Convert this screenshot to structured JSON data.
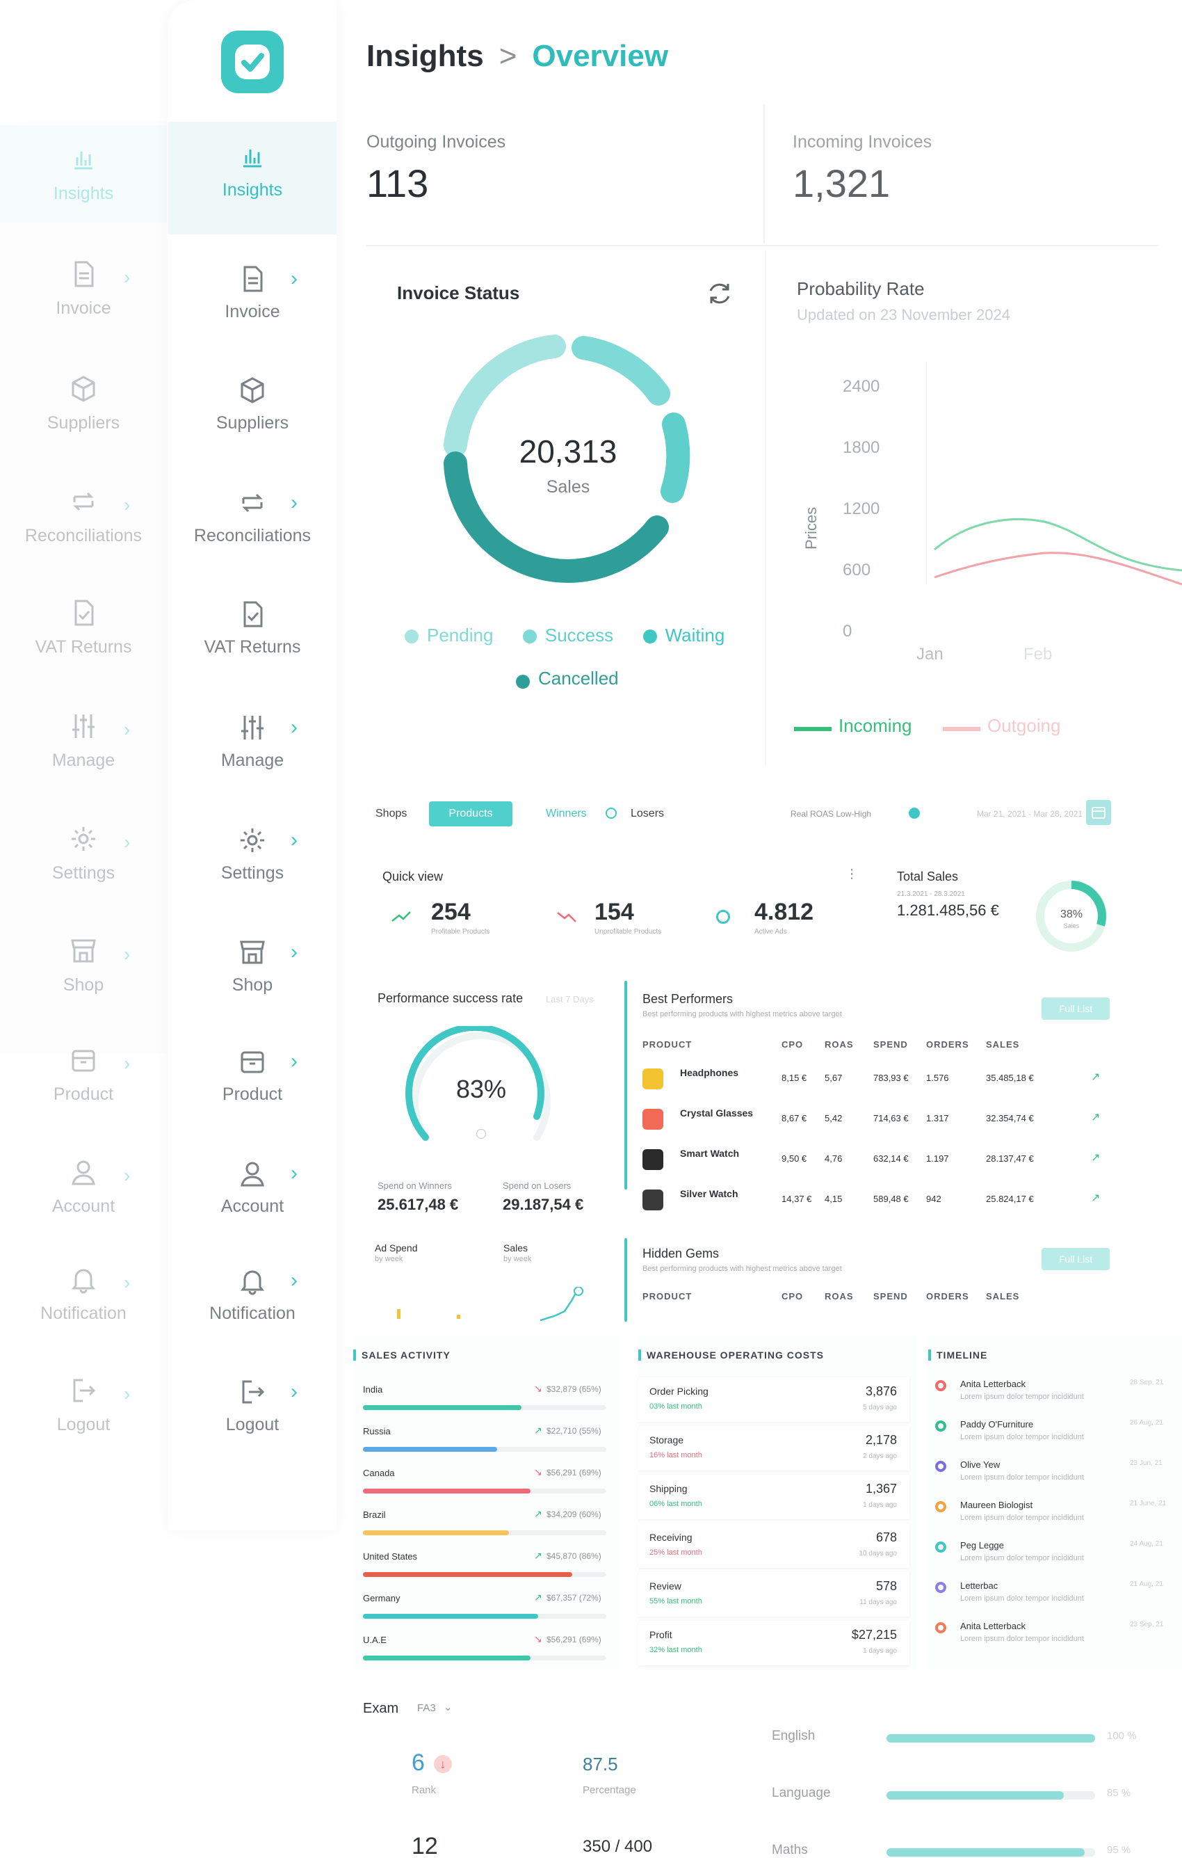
{
  "brand": {
    "accent": "#3ec7c4",
    "dark_teal": "#2f9e98",
    "logo_icon": "check-badge-icon"
  },
  "nav": {
    "items": [
      {
        "label": "Insights",
        "icon": "bar-chart-icon",
        "chevron": false,
        "active": true
      },
      {
        "label": "Invoice",
        "icon": "document-icon",
        "chevron": true
      },
      {
        "label": "Suppliers",
        "icon": "box-icon",
        "chevron": false
      },
      {
        "label": "Reconciliations",
        "icon": "swap-icon",
        "chevron": true
      },
      {
        "label": "VAT Returns",
        "icon": "file-check-icon",
        "chevron": false
      },
      {
        "label": "Manage",
        "icon": "sliders-icon",
        "chevron": true
      },
      {
        "label": "Settings",
        "icon": "gear-icon",
        "chevron": true
      },
      {
        "label": "Shop",
        "icon": "store-icon",
        "chevron": true
      },
      {
        "label": "Product",
        "icon": "package-icon",
        "chevron": true
      },
      {
        "label": "Account",
        "icon": "user-icon",
        "chevron": true
      },
      {
        "label": "Notification",
        "icon": "bell-icon",
        "chevron": true
      },
      {
        "label": "Logout",
        "icon": "logout-icon",
        "chevron": true
      }
    ]
  },
  "header": {
    "section": "Insights",
    "separator": ">",
    "page": "Overview"
  },
  "kpis": {
    "outgoing": {
      "label": "Outgoing Invoices",
      "value": "113"
    },
    "incoming": {
      "label": "Incoming Invoices",
      "value": "1,321"
    }
  },
  "invoice_status": {
    "title": "Invoice Status",
    "total": "20,313",
    "total_label": "Sales",
    "legend": [
      {
        "label": "Pending",
        "color": "#7fd9d6"
      },
      {
        "label": "Success",
        "color": "#3ec7c4"
      },
      {
        "label": "Waiting",
        "color": "#2ebdbb"
      },
      {
        "label": "Cancelled",
        "color": "#2f9e98"
      }
    ]
  },
  "probability": {
    "title": "Probability Rate",
    "subtitle": "Updated on 23 November 2024",
    "y_label": "Prices",
    "y_ticks": [
      "2400",
      "1800",
      "1200",
      "600",
      "0"
    ],
    "x_ticks": [
      "Jan",
      "Feb"
    ],
    "legend": [
      {
        "label": "Incoming",
        "color": "#35c07a"
      },
      {
        "label": "Outgoing",
        "color": "#f0747c"
      }
    ]
  },
  "shop_tabs": {
    "shops": "Shops",
    "products": "Products",
    "winners": "Winners",
    "losers": "Losers",
    "roas": "Real ROAS Low-High",
    "date_range": "Mar 21, 2021 - Mar 28, 2021"
  },
  "quick_view": {
    "title": "Quick view",
    "menu": "⋮",
    "items": [
      {
        "value": "254",
        "label": "Profitable Products"
      },
      {
        "value": "154",
        "label": "Unprofitable Products"
      },
      {
        "value": "4.812",
        "label": "Active Ads"
      }
    ]
  },
  "total_sales": {
    "title": "Total Sales",
    "range": "21.3.2021 - 28.3.2021",
    "value": "1.281.485,56 €",
    "percent": "38%",
    "percent_label": "Sales"
  },
  "performance": {
    "title": "Performance success rate",
    "period": "Last 7 Days",
    "percent": "83%",
    "spend_winners_label": "Spend on Winners",
    "spend_winners": "25.617,48 €",
    "spend_losers_label": "Spend on Losers",
    "spend_losers": "29.187,54 €",
    "ad_spend": "Ad Spend",
    "ad_spend_sub": "by week",
    "sales": "Sales",
    "sales_sub": "by week"
  },
  "best_performers": {
    "title": "Best Performers",
    "subtitle": "Best performing products with highest metrics above target",
    "button": "Full List",
    "columns": [
      "PRODUCT",
      "CPO",
      "ROAS",
      "SPEND",
      "ORDERS",
      "SALES"
    ],
    "rows": [
      {
        "name": "Headphones",
        "cpo": "8,15 €",
        "roas": "5,67",
        "spend": "783,93 €",
        "orders": "1.576",
        "sales": "35.485,18 €",
        "color": "#f2c230"
      },
      {
        "name": "Crystal Glasses",
        "cpo": "8,67 €",
        "roas": "5,42",
        "spend": "714,63 €",
        "orders": "1.317",
        "sales": "32.354,74 €",
        "color": "#f06a55"
      },
      {
        "name": "Smart Watch",
        "cpo": "9,50 €",
        "roas": "4,76",
        "spend": "632,14 €",
        "orders": "1.197",
        "sales": "28.137,47 €",
        "color": "#2b2b2b"
      },
      {
        "name": "Silver Watch",
        "cpo": "14,37 €",
        "roas": "4,15",
        "spend": "589,48 €",
        "orders": "942",
        "sales": "25.824,17 €",
        "color": "#3a3a3a"
      }
    ]
  },
  "hidden_gems": {
    "title": "Hidden Gems",
    "subtitle": "Best performing products with highest metrics above target",
    "button": "Full List",
    "columns": [
      "PRODUCT",
      "CPO",
      "ROAS",
      "SPEND",
      "ORDERS",
      "SALES"
    ]
  },
  "sales_activity": {
    "title": "SALES ACTIVITY",
    "rows": [
      {
        "country": "India",
        "value": "$32,879 (65%)",
        "trend": "down",
        "pct": 0.65,
        "color": "#3ec7a8"
      },
      {
        "country": "Russia",
        "value": "$22,710 (55%)",
        "trend": "up",
        "pct": 0.55,
        "color": "#5aa9e6"
      },
      {
        "country": "Canada",
        "value": "$56,291 (69%)",
        "trend": "down",
        "pct": 0.69,
        "color": "#f06a7a"
      },
      {
        "country": "Brazil",
        "value": "$34,209 (60%)",
        "trend": "up",
        "pct": 0.6,
        "color": "#f7c35a"
      },
      {
        "country": "United States",
        "value": "$45,870 (86%)",
        "trend": "up",
        "pct": 0.86,
        "color": "#e8604c"
      },
      {
        "country": "Germany",
        "value": "$67,357 (72%)",
        "trend": "up",
        "pct": 0.72,
        "color": "#3ec7c4"
      },
      {
        "country": "U.A.E",
        "value": "$56,291 (69%)",
        "trend": "down",
        "pct": 0.69,
        "color": "#3ec7a8"
      }
    ]
  },
  "warehouse": {
    "title": "WAREHOUSE OPERATING COSTS",
    "rows": [
      {
        "name": "Order Picking",
        "change": "03% last month",
        "value": "3,876",
        "time": "5 days ago",
        "dir": "up"
      },
      {
        "name": "Storage",
        "change": "16% last month",
        "value": "2,178",
        "time": "2 days ago",
        "dir": "down"
      },
      {
        "name": "Shipping",
        "change": "06% last month",
        "value": "1,367",
        "time": "1 days ago",
        "dir": "up"
      },
      {
        "name": "Receiving",
        "change": "25% last month",
        "value": "678",
        "time": "10 days ago",
        "dir": "down"
      },
      {
        "name": "Review",
        "change": "55% last month",
        "value": "578",
        "time": "11 days ago",
        "dir": "up"
      },
      {
        "name": "Profit",
        "change": "32% last month",
        "value": "$27,215",
        "time": "1 days ago",
        "dir": "up"
      }
    ]
  },
  "timeline": {
    "title": "TIMELINE",
    "rows": [
      {
        "name": "Anita Letterback",
        "text": "Lorem ipsum dolor tempor incididunt",
        "date": "28 Sep, 21",
        "color": "#ef6b6b"
      },
      {
        "name": "Paddy O'Furniture",
        "text": "Lorem ipsum dolor tempor incididunt",
        "date": "26 Aug, 21",
        "color": "#2fbf8f"
      },
      {
        "name": "Olive Yew",
        "text": "Lorem ipsum dolor tempor incididunt",
        "date": "23 Jun, 21",
        "color": "#7a6fe0"
      },
      {
        "name": "Maureen Biologist",
        "text": "Lorem ipsum dolor tempor incididunt",
        "date": "21 June, 21",
        "color": "#f3a23c"
      },
      {
        "name": "Peg Legge",
        "text": "Lorem ipsum dolor tempor incididunt",
        "date": "24 Aug, 21",
        "color": "#3ec7c4"
      },
      {
        "name": "Letterbac",
        "text": "Lorem ipsum dolor tempor incididunt",
        "date": "21 Aug, 21",
        "color": "#8a7fe6"
      },
      {
        "name": "Anita Letterback",
        "text": "Lorem ipsum dolor tempor incididunt",
        "date": "23 Sep, 21",
        "color": "#f07b5a"
      }
    ]
  },
  "exam": {
    "title": "Exam",
    "filter": "FA3",
    "rank": "6",
    "rank_label": "Rank",
    "percentage": "87.5",
    "percentage_label": "Percentage",
    "second_value": "12",
    "third_value": "350 / 400",
    "subjects": [
      {
        "name": "English",
        "pct": 1.0,
        "label": "100 %"
      },
      {
        "name": "Language",
        "pct": 0.85,
        "label": "85 %"
      },
      {
        "name": "Maths",
        "pct": 0.95,
        "label": "95 %"
      }
    ]
  }
}
